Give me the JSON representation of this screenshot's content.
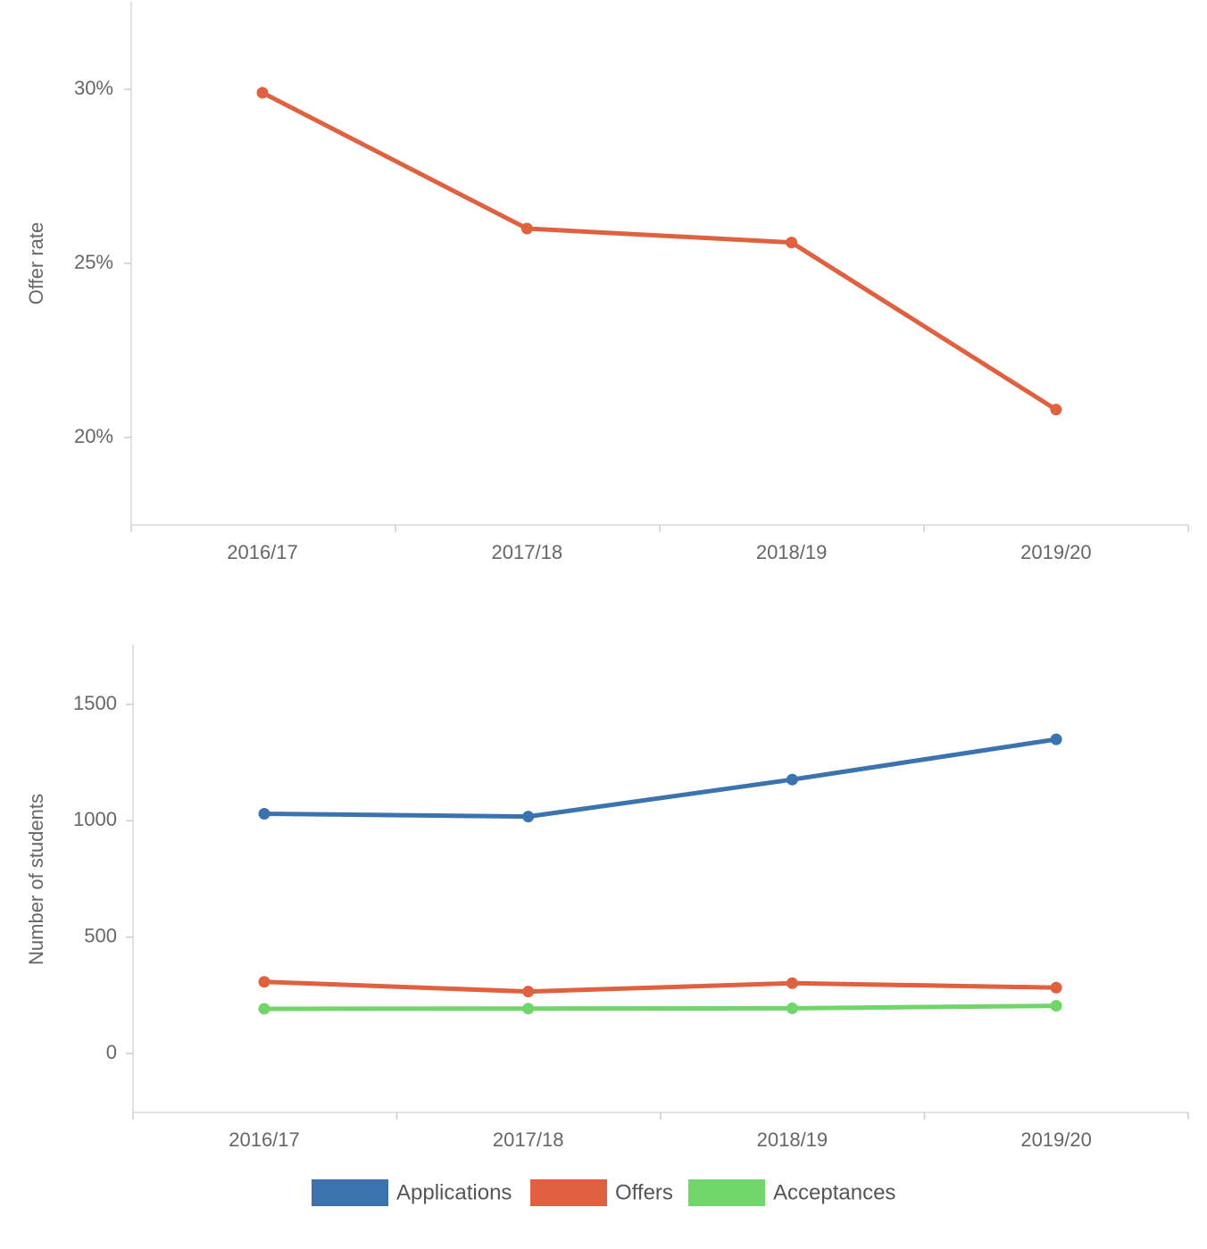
{
  "chart_data": [
    {
      "type": "line",
      "title": "",
      "xlabel": "",
      "ylabel": "Offer rate",
      "categories": [
        "2016/17",
        "2017/18",
        "2018/19",
        "2019/20"
      ],
      "ylim": [
        17.5,
        32.5
      ],
      "yticks": [
        20,
        25,
        30
      ],
      "ytick_labels": [
        "20%",
        "25%",
        "30%"
      ],
      "grid": false,
      "series": [
        {
          "color": "#E0613F",
          "values": [
            29.9,
            26.0,
            25.6,
            20.8
          ]
        }
      ]
    },
    {
      "type": "line",
      "title": "",
      "xlabel": "",
      "ylabel": "Number of students",
      "categories": [
        "2016/17",
        "2017/18",
        "2018/19",
        "2019/20"
      ],
      "ylim": [
        -250,
        1750
      ],
      "yticks": [
        0,
        500,
        1000,
        1500
      ],
      "ytick_labels": [
        "0",
        "500",
        "1000",
        "1500"
      ],
      "grid": false,
      "legend_position": "bottom",
      "series": [
        {
          "name": "Applications",
          "color": "#3A73AE",
          "values": [
            1030,
            1018,
            1177,
            1350
          ]
        },
        {
          "name": "Offers",
          "color": "#E0613F",
          "values": [
            308,
            266,
            302,
            283
          ]
        },
        {
          "name": "Acceptances",
          "color": "#70D66A",
          "values": [
            192,
            193,
            194,
            205
          ]
        }
      ]
    }
  ]
}
